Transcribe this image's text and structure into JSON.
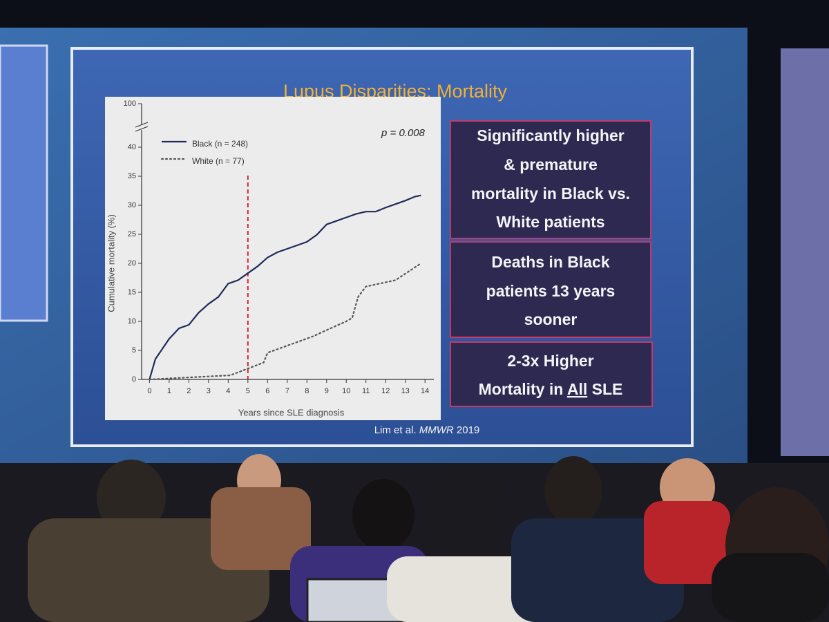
{
  "slide": {
    "title": "Lupus Disparities: Mortality",
    "boxes": [
      {
        "lines": [
          "Significantly higher",
          "& premature",
          "mortality in Black vs.",
          "White patients"
        ]
      },
      {
        "lines": [
          "Deaths in Black",
          "patients 13 years",
          "sooner"
        ]
      },
      {
        "lines": [
          "2-3x Higher"
        ],
        "line_parts": [
          "Mortality in ",
          "All",
          " SLE"
        ]
      }
    ],
    "citation": {
      "authors": "Lim et al.",
      "journal": "MMWR",
      "year": "2019"
    }
  },
  "chart_data": {
    "type": "line",
    "annotation": "p = 0.008",
    "x_label": "Years since SLE diagnosis",
    "y_label": "Cumulative mortality (%)",
    "xlim": [
      -0.4,
      14.45
    ],
    "xticks": [
      0,
      1,
      2,
      3,
      4,
      5,
      6,
      7,
      8,
      9,
      10,
      11,
      12,
      13,
      14
    ],
    "ylim": [
      0,
      100
    ],
    "yticks": [
      0,
      5,
      10,
      15,
      20,
      25,
      30,
      35,
      40,
      100
    ],
    "broken_axis": true,
    "reference_line": {
      "x": 5,
      "color": "#d9262b"
    },
    "series": [
      {
        "name": "Black (n = 248)",
        "color": "#1f2a5a",
        "dash": "solid",
        "x": [
          0,
          0.3,
          1,
          1.5,
          2,
          2.5,
          3,
          3.5,
          4,
          4.5,
          5,
          5.5,
          6,
          6.5,
          7,
          7.5,
          8,
          8.5,
          9,
          9.5,
          10,
          10.5,
          11,
          11.5,
          12,
          12.5,
          13,
          13.5,
          13.8
        ],
        "values": [
          0,
          3.5,
          7,
          8.8,
          9.4,
          11.5,
          13,
          14.2,
          16.5,
          17.1,
          18.3,
          19.5,
          21,
          21.9,
          22.5,
          23.1,
          23.7,
          24.9,
          26.7,
          27.3,
          27.9,
          28.5,
          28.9,
          28.9,
          29.6,
          30.2,
          30.8,
          31.5,
          31.7
        ]
      },
      {
        "name": "White (n = 77)",
        "color": "#555555",
        "dash": "dotted",
        "x": [
          0,
          4.1,
          5.8,
          6,
          8.3,
          9,
          10,
          10.3,
          10.6,
          11,
          12.5,
          13.8
        ],
        "values": [
          0,
          0.7,
          2.9,
          4.6,
          7.4,
          8.5,
          10,
          10.6,
          14.2,
          16,
          17.1,
          20
        ]
      }
    ]
  }
}
